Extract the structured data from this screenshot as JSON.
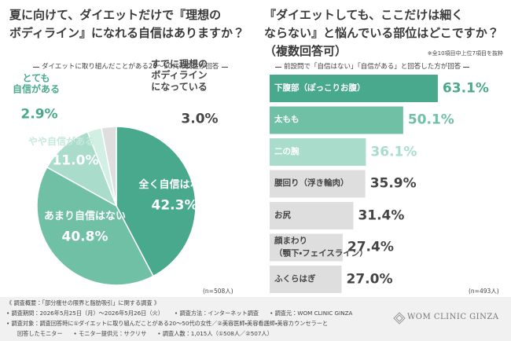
{
  "chart_data": [
    {
      "type": "pie",
      "title": "夏に向けて、ダイエットだけで『理想の\nボディライン』になれる自信はありますか？",
      "subtitle": "ダイエットに取り組んだことがある20〜50代の女性が回答",
      "note": "(n=508人)",
      "categories": [
        "全く自信はない",
        "あまり自信はない",
        "やや自信がある",
        "とても\n自信がある",
        "すでに理想の\nボディライン\nになっている"
      ],
      "values": [
        42.3,
        40.8,
        11.0,
        2.9,
        3.0
      ],
      "value_labels": [
        "42.3%",
        "40.8%",
        "11.0%",
        "2.9%",
        "3.0%"
      ],
      "colors": [
        "#49a98c",
        "#6fc0a5",
        "#a9dccb",
        "#d2efe4",
        "#dedede"
      ]
    },
    {
      "type": "bar",
      "title": "『ダイエットしても、ここだけは細く\nならない』と悩んでいる部位はどこですか？\n（複数回答可）",
      "footnote": "※全10項目中上位7項目を抜粋",
      "subtitle": "前設問で「自信はない」「自信がある」と回答した方が回答",
      "note": "(n=493人)",
      "categories": [
        "下腹部（ぽっこりお腹）",
        "太もも",
        "二の腕",
        "腰回り（浮き輪肉）",
        "お尻",
        "顔まわり\n（顎下・フェイスライン）",
        "ふくらはぎ"
      ],
      "values": [
        63.1,
        50.1,
        36.1,
        35.9,
        31.4,
        27.4,
        27.0
      ],
      "value_labels": [
        "63.1%",
        "50.1%",
        "36.1%",
        "35.9%",
        "31.4%",
        "27.4%",
        "27.0%"
      ],
      "colors": [
        "#49a98c",
        "#6fc0a5",
        "#a9dccb",
        "#dedede",
        "#dedede",
        "#dedede",
        "#dedede"
      ]
    }
  ],
  "footer": {
    "heading": "《 調査概要：「部分痩せの限界と脂肪吸引」に関する調査 》",
    "rows": [
      [
        "• 調査期間：2026年5月25日（月）〜2026年5月26日（火）",
        "• 調査方法：インターネット調査",
        "• 調査元：WOM CLINIC GINZA"
      ],
      [
        "• 調査対象：調査回答時に①ダイエットに取り組んだことがある20〜50代の女性／②美容医師・美容看護師・美容カウンセラーと"
      ],
      [
        "回答したモニター",
        "• モニター提供元：サクリサ",
        "• 調査人数：1,015人（①508人／②507人）"
      ]
    ]
  },
  "logo": "WOM CLINIC GINZA"
}
